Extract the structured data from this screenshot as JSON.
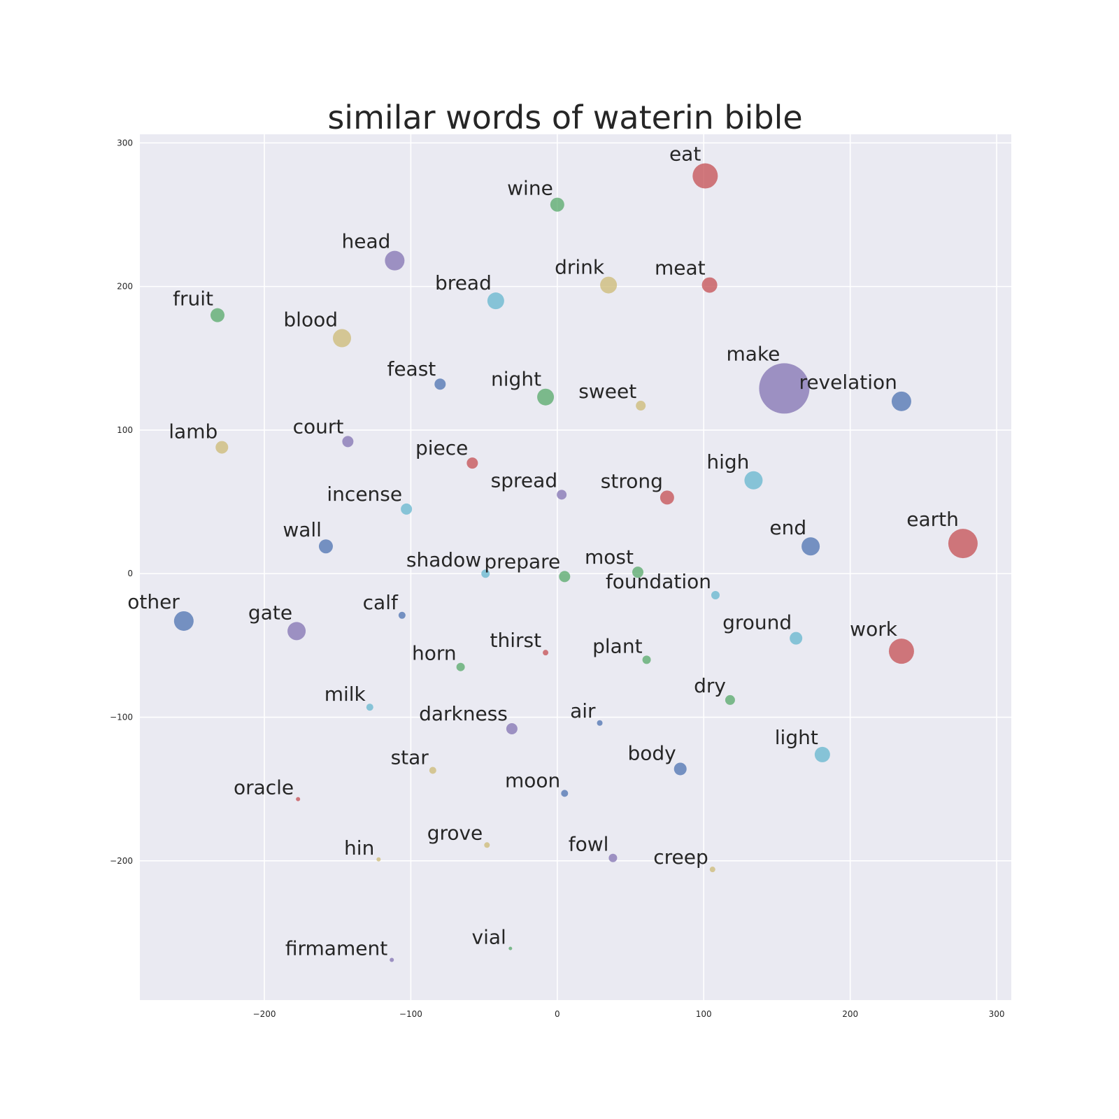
{
  "chart_data": {
    "type": "scatter",
    "title": "similar words of waterin bible",
    "xlabel": "",
    "ylabel": "",
    "xlim": [
      -285,
      310
    ],
    "ylim": [
      -297,
      306
    ],
    "xticks": [
      -200,
      -100,
      0,
      100,
      200,
      300
    ],
    "yticks": [
      300,
      200,
      100,
      0,
      -100,
      -200
    ],
    "xtick_labels": [
      "−200",
      "−100",
      "0",
      "100",
      "200",
      "300"
    ],
    "ytick_labels": [
      "300",
      "200",
      "100",
      "0",
      "−100",
      "−200"
    ],
    "grid": true,
    "colors": {
      "blue": "#4c72b0",
      "green": "#55a868",
      "red": "#c44e52",
      "purple": "#8172b2",
      "yellow": "#ccb974",
      "cyan": "#64b5cd"
    },
    "points": [
      {
        "label": "eat",
        "x": 101,
        "y": 277,
        "size": 18,
        "color": "red"
      },
      {
        "label": "wine",
        "x": 0,
        "y": 257,
        "size": 10,
        "color": "green"
      },
      {
        "label": "head",
        "x": -111,
        "y": 218,
        "size": 14,
        "color": "purple"
      },
      {
        "label": "drink",
        "x": 35,
        "y": 201,
        "size": 12,
        "color": "yellow"
      },
      {
        "label": "meat",
        "x": 104,
        "y": 201,
        "size": 11,
        "color": "red"
      },
      {
        "label": "bread",
        "x": -42,
        "y": 190,
        "size": 12,
        "color": "cyan"
      },
      {
        "label": "fruit",
        "x": -232,
        "y": 180,
        "size": 10,
        "color": "green"
      },
      {
        "label": "blood",
        "x": -147,
        "y": 164,
        "size": 13,
        "color": "yellow"
      },
      {
        "label": "feast",
        "x": -80,
        "y": 132,
        "size": 8,
        "color": "blue"
      },
      {
        "label": "night",
        "x": -8,
        "y": 123,
        "size": 12,
        "color": "green"
      },
      {
        "label": "sweet",
        "x": 57,
        "y": 117,
        "size": 7,
        "color": "yellow"
      },
      {
        "label": "make",
        "x": 155,
        "y": 129,
        "size": 36,
        "color": "purple"
      },
      {
        "label": "revelation",
        "x": 235,
        "y": 120,
        "size": 14,
        "color": "blue"
      },
      {
        "label": "lamb",
        "x": -229,
        "y": 88,
        "size": 9,
        "color": "yellow"
      },
      {
        "label": "court",
        "x": -143,
        "y": 92,
        "size": 8,
        "color": "purple"
      },
      {
        "label": "piece",
        "x": -58,
        "y": 77,
        "size": 8,
        "color": "red"
      },
      {
        "label": "spread",
        "x": 3,
        "y": 55,
        "size": 7,
        "color": "purple"
      },
      {
        "label": "strong",
        "x": 75,
        "y": 53,
        "size": 10,
        "color": "red"
      },
      {
        "label": "high",
        "x": 134,
        "y": 65,
        "size": 13,
        "color": "cyan"
      },
      {
        "label": "incense",
        "x": -103,
        "y": 45,
        "size": 8,
        "color": "cyan"
      },
      {
        "label": "wall",
        "x": -158,
        "y": 19,
        "size": 10,
        "color": "blue"
      },
      {
        "label": "end",
        "x": 173,
        "y": 19,
        "size": 13,
        "color": "blue"
      },
      {
        "label": "earth",
        "x": 277,
        "y": 21,
        "size": 21,
        "color": "red"
      },
      {
        "label": "shadow",
        "x": -49,
        "y": 0,
        "size": 6,
        "color": "cyan"
      },
      {
        "label": "prepare",
        "x": 5,
        "y": -2,
        "size": 8,
        "color": "green"
      },
      {
        "label": "most",
        "x": 55,
        "y": 1,
        "size": 8,
        "color": "green"
      },
      {
        "label": "foundation",
        "x": 108,
        "y": -15,
        "size": 6,
        "color": "cyan"
      },
      {
        "label": "other",
        "x": -255,
        "y": -33,
        "size": 14,
        "color": "blue"
      },
      {
        "label": "gate",
        "x": -178,
        "y": -40,
        "size": 13,
        "color": "purple"
      },
      {
        "label": "calf",
        "x": -106,
        "y": -29,
        "size": 5,
        "color": "blue"
      },
      {
        "label": "ground",
        "x": 163,
        "y": -45,
        "size": 9,
        "color": "cyan"
      },
      {
        "label": "work",
        "x": 235,
        "y": -54,
        "size": 18,
        "color": "red"
      },
      {
        "label": "thirst",
        "x": -8,
        "y": -55,
        "size": 4,
        "color": "red"
      },
      {
        "label": "plant",
        "x": 61,
        "y": -60,
        "size": 6,
        "color": "green"
      },
      {
        "label": "horn",
        "x": -66,
        "y": -65,
        "size": 6,
        "color": "green"
      },
      {
        "label": "dry",
        "x": 118,
        "y": -88,
        "size": 7,
        "color": "green"
      },
      {
        "label": "milk",
        "x": -128,
        "y": -93,
        "size": 5,
        "color": "cyan"
      },
      {
        "label": "darkness",
        "x": -31,
        "y": -108,
        "size": 8,
        "color": "purple"
      },
      {
        "label": "air",
        "x": 29,
        "y": -104,
        "size": 4,
        "color": "blue"
      },
      {
        "label": "light",
        "x": 181,
        "y": -126,
        "size": 11,
        "color": "cyan"
      },
      {
        "label": "star",
        "x": -85,
        "y": -137,
        "size": 5,
        "color": "yellow"
      },
      {
        "label": "body",
        "x": 84,
        "y": -136,
        "size": 9,
        "color": "blue"
      },
      {
        "label": "moon",
        "x": 5,
        "y": -153,
        "size": 5,
        "color": "blue"
      },
      {
        "label": "oracle",
        "x": -177,
        "y": -157,
        "size": 3,
        "color": "red"
      },
      {
        "label": "grove",
        "x": -48,
        "y": -189,
        "size": 4,
        "color": "yellow"
      },
      {
        "label": "hin",
        "x": -122,
        "y": -199,
        "size": 3,
        "color": "yellow"
      },
      {
        "label": "fowl",
        "x": 38,
        "y": -198,
        "size": 6,
        "color": "purple"
      },
      {
        "label": "creep",
        "x": 106,
        "y": -206,
        "size": 4,
        "color": "yellow"
      },
      {
        "label": "vial",
        "x": -32,
        "y": -261,
        "size": 2.5,
        "color": "green"
      },
      {
        "label": "firmament",
        "x": -113,
        "y": -269,
        "size": 3,
        "color": "purple"
      }
    ]
  }
}
